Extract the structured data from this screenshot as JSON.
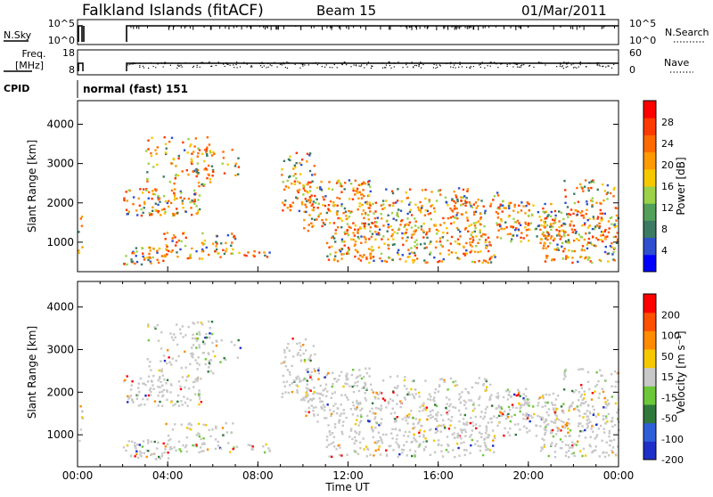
{
  "header": {
    "station": "Falkland Islands (fitACF)",
    "beam": "Beam 15",
    "date": "01/Mar/2011"
  },
  "top_panels": {
    "nsky": {
      "label": "N.Sky",
      "ticks": [
        "10^5",
        "10^0"
      ]
    },
    "nsearch": {
      "label": "N.Search",
      "ticks": [
        "10^5",
        "10^0"
      ],
      "line_style": "dotted"
    },
    "freq": {
      "label_top": "Freq.",
      "label_unit": "[MHz]",
      "ticks": [
        "18",
        "8"
      ]
    },
    "nave": {
      "label": "Nave",
      "ticks": [
        "60",
        "0"
      ],
      "line_style": "dotted"
    },
    "cpid": {
      "label": "CPID",
      "value": "normal (fast) 151"
    }
  },
  "chart_data": [
    {
      "type": "heatmap",
      "name": "power",
      "ylabel": "Slant Range [km]",
      "xlabel": "",
      "yticks": [
        "1000",
        "2000",
        "3000",
        "4000"
      ],
      "ylim": [
        250,
        4600
      ],
      "xlim": [
        "00:00",
        "24:00"
      ],
      "colorbar": {
        "label": "Power [dB]",
        "ticks": [
          "4",
          "8",
          "12",
          "16",
          "20",
          "24",
          "28"
        ],
        "colors": [
          "#0000ff",
          "#2f4fd0",
          "#3c7a63",
          "#52a05a",
          "#9bd24a",
          "#f5c800",
          "#ff9a00",
          "#ff6a00",
          "#ff3a00",
          "#ff0000"
        ]
      }
    },
    {
      "type": "heatmap",
      "name": "velocity",
      "ylabel": "Slant Range [km]",
      "xlabel": "Time UT",
      "yticks": [
        "1000",
        "2000",
        "3000",
        "4000"
      ],
      "ylim": [
        250,
        4600
      ],
      "xlim": [
        "00:00",
        "24:00"
      ],
      "xticks": [
        "00:00",
        "04:00",
        "08:00",
        "12:00",
        "16:00",
        "20:00",
        "00:00"
      ],
      "colorbar": {
        "label": "Velocity [m s⁻¹]",
        "ticks": [
          "200",
          "100",
          "50",
          "15",
          "-15",
          "-50",
          "-100",
          "-200"
        ],
        "colors": [
          "#1e30c8",
          "#2f5fd8",
          "#2f7a3a",
          "#6cc83a",
          "#c8c8c8",
          "#f5c800",
          "#ff8c00",
          "#ff5000",
          "#ff0000"
        ]
      }
    }
  ]
}
